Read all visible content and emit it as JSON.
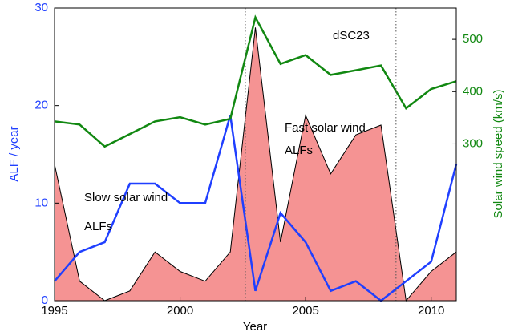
{
  "chart_data": {
    "type": "line",
    "x_label": "Year",
    "y_label": "ALF / year",
    "y2_label": "Solar wind speed (km/s)",
    "x": [
      1995,
      1996,
      1997,
      1998,
      1999,
      2000,
      2001,
      2002,
      2003,
      2004,
      2005,
      2006,
      2007,
      2008,
      2009,
      2010,
      2011
    ],
    "xlim": [
      1995,
      2011
    ],
    "ylim": [
      0,
      30
    ],
    "y2lim": [
      0,
      560
    ],
    "xticks": [
      1995,
      2000,
      2005,
      2010
    ],
    "yticks": [
      0,
      10,
      20,
      30
    ],
    "y2ticks": [
      300,
      400,
      500
    ],
    "vlines": [
      2002.6,
      2008.6
    ],
    "annotations": [
      "dSC23",
      "Fast solar wind",
      "ALFs",
      "Slow solar wind",
      "ALFs"
    ],
    "series": [
      {
        "type": "area",
        "color": "#f59393",
        "values": [
          14,
          2,
          0,
          1,
          5,
          3,
          2,
          5,
          28,
          6,
          19,
          13,
          17,
          18,
          0,
          3,
          5
        ]
      },
      {
        "type": "line",
        "color": "#1f3fff",
        "values": [
          2,
          5,
          6,
          12,
          12,
          10,
          10,
          19,
          1,
          9,
          6,
          1,
          2,
          0,
          2,
          4,
          14
        ]
      },
      {
        "type": "line",
        "axis": "y2",
        "color": "#118811",
        "values": [
          343,
          337,
          295,
          319,
          343,
          351,
          337,
          348,
          542,
          453,
          470,
          432,
          441,
          450,
          368,
          405,
          420
        ]
      }
    ],
    "y_color": "#1f3fff",
    "y2_color": "#118811"
  }
}
